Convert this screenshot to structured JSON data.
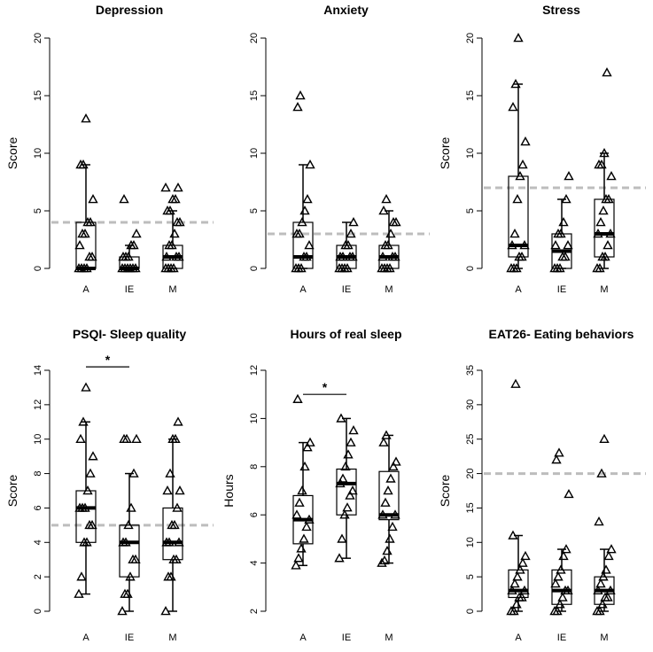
{
  "chart_data": [
    {
      "type": "box",
      "title": "Depression",
      "ylabel": "Score",
      "ylim": [
        0,
        20
      ],
      "yticks": [
        "0",
        "5",
        "10",
        "15",
        "20"
      ],
      "categories": [
        "A",
        "IE",
        "M"
      ],
      "reference_line": 4,
      "significance": null,
      "groups": [
        {
          "name": "A",
          "box": {
            "q1": 0,
            "median": 0,
            "q3": 4,
            "lower_whisker": 0,
            "upper_whisker": 9
          },
          "points": [
            0,
            0,
            0,
            0,
            1,
            1,
            2,
            3,
            3,
            4,
            4,
            6,
            9,
            9,
            13
          ]
        },
        {
          "name": "IE",
          "box": {
            "q1": 0,
            "median": 0,
            "q3": 1,
            "lower_whisker": 0,
            "upper_whisker": 2
          },
          "points": [
            0,
            0,
            0,
            0,
            0,
            0,
            1,
            1,
            1,
            2,
            2,
            3,
            6
          ]
        },
        {
          "name": "M",
          "box": {
            "q1": 0,
            "median": 1,
            "q3": 2,
            "lower_whisker": 0,
            "upper_whisker": 5
          },
          "points": [
            0,
            0,
            0,
            0,
            1,
            1,
            1,
            2,
            2,
            3,
            4,
            4,
            5,
            5,
            6,
            6,
            7,
            7
          ]
        }
      ]
    },
    {
      "type": "box",
      "title": "Anxiety",
      "ylabel": "",
      "ylim": [
        0,
        20
      ],
      "yticks": [
        "0",
        "5",
        "10",
        "15",
        "20"
      ],
      "categories": [
        "A",
        "IE",
        "M"
      ],
      "reference_line": 3,
      "significance": null,
      "groups": [
        {
          "name": "A",
          "box": {
            "q1": 0,
            "median": 1,
            "q3": 4,
            "lower_whisker": 0,
            "upper_whisker": 9
          },
          "points": [
            0,
            0,
            0,
            1,
            1,
            2,
            3,
            3,
            4,
            5,
            6,
            9,
            14,
            15
          ]
        },
        {
          "name": "IE",
          "box": {
            "q1": 0,
            "median": 1,
            "q3": 2,
            "lower_whisker": 0,
            "upper_whisker": 4
          },
          "points": [
            0,
            0,
            0,
            0,
            1,
            1,
            1,
            1,
            2,
            2,
            3,
            4
          ]
        },
        {
          "name": "M",
          "box": {
            "q1": 0,
            "median": 1,
            "q3": 2,
            "lower_whisker": 0,
            "upper_whisker": 5
          },
          "points": [
            0,
            0,
            0,
            0,
            1,
            1,
            1,
            2,
            2,
            3,
            4,
            4,
            5,
            6
          ]
        }
      ]
    },
    {
      "type": "box",
      "title": "Stress",
      "ylabel": "Score",
      "ylim": [
        0,
        20
      ],
      "yticks": [
        "0",
        "5",
        "10",
        "15",
        "20"
      ],
      "categories": [
        "A",
        "IE",
        "M"
      ],
      "reference_line": 7,
      "significance": null,
      "groups": [
        {
          "name": "A",
          "box": {
            "q1": 1,
            "median": 2,
            "q3": 8,
            "lower_whisker": 0,
            "upper_whisker": 16
          },
          "points": [
            0,
            0,
            0,
            1,
            1,
            2,
            2,
            3,
            6,
            8,
            9,
            11,
            14,
            16,
            20
          ]
        },
        {
          "name": "IE",
          "box": {
            "q1": 0,
            "median": 1.5,
            "q3": 3,
            "lower_whisker": 0,
            "upper_whisker": 6
          },
          "points": [
            0,
            0,
            0,
            1,
            1,
            2,
            2,
            3,
            3,
            4,
            6,
            8
          ]
        },
        {
          "name": "M",
          "box": {
            "q1": 1,
            "median": 3,
            "q3": 6,
            "lower_whisker": 0,
            "upper_whisker": 10
          },
          "points": [
            0,
            0,
            1,
            1,
            2,
            3,
            3,
            4,
            5,
            6,
            6,
            8,
            9,
            9,
            10,
            17
          ]
        }
      ]
    },
    {
      "type": "box",
      "title": "PSQI- Sleep quality",
      "ylabel": "Score",
      "ylim": [
        0,
        14
      ],
      "yticks": [
        "0",
        "2",
        "4",
        "6",
        "8",
        "10",
        "12",
        "14"
      ],
      "categories": [
        "A",
        "IE",
        "M"
      ],
      "reference_line": 5,
      "significance": {
        "from": "A",
        "to": "IE",
        "label": "*",
        "y": 14.2
      },
      "groups": [
        {
          "name": "A",
          "box": {
            "q1": 4,
            "median": 6,
            "q3": 7,
            "lower_whisker": 1,
            "upper_whisker": 11
          },
          "points": [
            1,
            2,
            4,
            4,
            5,
            5,
            6,
            6,
            6,
            7,
            8,
            9,
            10,
            11,
            13
          ]
        },
        {
          "name": "IE",
          "box": {
            "q1": 2,
            "median": 4,
            "q3": 5,
            "lower_whisker": 0,
            "upper_whisker": 8
          },
          "points": [
            0,
            1,
            1,
            2,
            3,
            3,
            4,
            4,
            5,
            6,
            8,
            10,
            10,
            10
          ]
        },
        {
          "name": "M",
          "box": {
            "q1": 3,
            "median": 4,
            "q3": 6,
            "lower_whisker": 0,
            "upper_whisker": 10
          },
          "points": [
            0,
            2,
            2,
            3,
            3,
            4,
            4,
            4,
            5,
            5,
            6,
            7,
            7,
            8,
            10,
            10,
            11
          ]
        }
      ]
    },
    {
      "type": "box",
      "title": "Hours of real sleep",
      "ylabel": "Hours",
      "ylim": [
        2,
        12
      ],
      "yticks": [
        "2",
        "4",
        "6",
        "8",
        "10",
        "12"
      ],
      "categories": [
        "A",
        "IE",
        "M"
      ],
      "reference_line": null,
      "significance": {
        "from": "A",
        "to": "IE",
        "label": "*",
        "y": 11.0
      },
      "groups": [
        {
          "name": "A",
          "box": {
            "q1": 4.8,
            "median": 5.8,
            "q3": 6.8,
            "lower_whisker": 3.9,
            "upper_whisker": 9
          },
          "points": [
            3.9,
            4.2,
            4.6,
            5,
            5.5,
            5.8,
            6,
            6.5,
            7,
            8,
            8.8,
            9,
            10.8
          ]
        },
        {
          "name": "IE",
          "box": {
            "q1": 6,
            "median": 7.3,
            "q3": 7.9,
            "lower_whisker": 4.2,
            "upper_whisker": 10
          },
          "points": [
            4.2,
            5,
            6,
            6.3,
            6.8,
            7,
            7.3,
            7.5,
            8,
            8.5,
            9,
            9.5,
            10
          ]
        },
        {
          "name": "M",
          "box": {
            "q1": 5.8,
            "median": 6,
            "q3": 7.8,
            "lower_whisker": 4,
            "upper_whisker": 9.3
          },
          "points": [
            4,
            4.1,
            4.5,
            5,
            5.5,
            6,
            6,
            6.5,
            7,
            7.5,
            8,
            8.2,
            9,
            9.3
          ]
        }
      ]
    },
    {
      "type": "box",
      "title": "EAT26- Eating behaviors",
      "ylabel": "Score",
      "ylim": [
        0,
        35
      ],
      "yticks": [
        "0",
        "5",
        "10",
        "15",
        "20",
        "25",
        "30",
        "35"
      ],
      "categories": [
        "A",
        "IE",
        "M"
      ],
      "reference_line": 20,
      "significance": null,
      "groups": [
        {
          "name": "A",
          "box": {
            "q1": 2,
            "median": 3,
            "q3": 6,
            "lower_whisker": 0,
            "upper_whisker": 11
          },
          "points": [
            0,
            0,
            1,
            2,
            2,
            3,
            3,
            4,
            5,
            6,
            7,
            8,
            11,
            33
          ]
        },
        {
          "name": "IE",
          "box": {
            "q1": 1,
            "median": 3,
            "q3": 6,
            "lower_whisker": 0,
            "upper_whisker": 9
          },
          "points": [
            0,
            0,
            1,
            2,
            3,
            3,
            4,
            5,
            6,
            8,
            9,
            17,
            22,
            23
          ]
        },
        {
          "name": "M",
          "box": {
            "q1": 1,
            "median": 3,
            "q3": 5,
            "lower_whisker": 0,
            "upper_whisker": 9
          },
          "points": [
            0,
            0,
            1,
            2,
            2,
            3,
            3,
            4,
            5,
            6,
            8,
            9,
            13,
            20,
            25
          ]
        }
      ]
    }
  ]
}
